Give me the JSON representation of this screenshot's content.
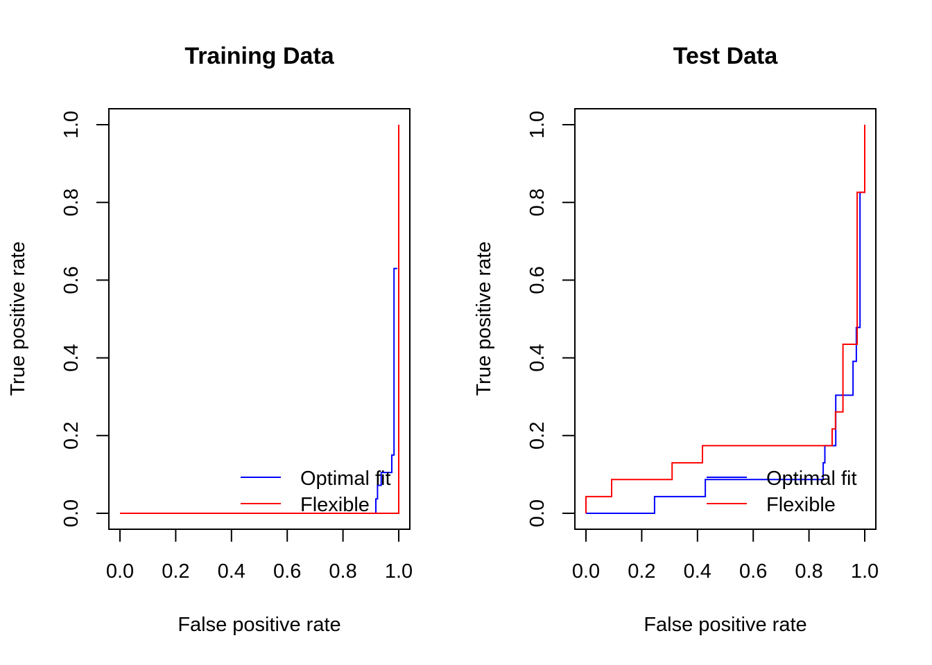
{
  "chart_data": [
    {
      "type": "line",
      "title": "Training Data",
      "xlabel": "False positive rate",
      "ylabel": "True positive rate",
      "xlim": [
        0,
        1
      ],
      "ylim": [
        0,
        1
      ],
      "xticks": [
        "0.0",
        "0.2",
        "0.4",
        "0.6",
        "0.8",
        "1.0"
      ],
      "yticks": [
        "0.0",
        "0.2",
        "0.4",
        "0.6",
        "0.8",
        "1.0"
      ],
      "xtick_values": [
        0,
        0.2,
        0.4,
        0.6,
        0.8,
        1.0
      ],
      "ytick_values": [
        0,
        0.2,
        0.4,
        0.6,
        0.8,
        1.0
      ],
      "grid": false,
      "legend_position": "bottom-right",
      "series": [
        {
          "name": "Optimal fit",
          "color": "#0000ff",
          "step": true,
          "x": [
            0,
            0.918,
            0.918,
            0.924,
            0.924,
            0.937,
            0.937,
            0.975,
            0.975,
            0.983,
            0.983,
            0.995
          ],
          "y": [
            0,
            0,
            0.037,
            0.037,
            0.072,
            0.072,
            0.105,
            0.105,
            0.15,
            0.15,
            0.63,
            0.63
          ]
        },
        {
          "name": "Flexible",
          "color": "#ff0000",
          "step": true,
          "x": [
            0,
            1.0,
            1.0
          ],
          "y": [
            0,
            0,
            1.0
          ]
        }
      ]
    },
    {
      "type": "line",
      "title": "Test Data",
      "xlabel": "False positive rate",
      "ylabel": "True positive rate",
      "xlim": [
        0,
        1
      ],
      "ylim": [
        0,
        1
      ],
      "xticks": [
        "0.0",
        "0.2",
        "0.4",
        "0.6",
        "0.8",
        "1.0"
      ],
      "yticks": [
        "0.0",
        "0.2",
        "0.4",
        "0.6",
        "0.8",
        "1.0"
      ],
      "xtick_values": [
        0,
        0.2,
        0.4,
        0.6,
        0.8,
        1.0
      ],
      "ytick_values": [
        0,
        0.2,
        0.4,
        0.6,
        0.8,
        1.0
      ],
      "grid": false,
      "legend_position": "bottom-right",
      "series": [
        {
          "name": "Optimal fit",
          "color": "#0000ff",
          "step": true,
          "x": [
            0,
            0.246,
            0.246,
            0.428,
            0.428,
            0.851,
            0.851,
            0.857,
            0.857,
            0.896,
            0.896,
            0.958,
            0.958,
            0.97,
            0.97,
            0.983,
            0.983,
            1.0,
            1.0
          ],
          "y": [
            0,
            0,
            0.043,
            0.043,
            0.087,
            0.087,
            0.13,
            0.13,
            0.174,
            0.174,
            0.304,
            0.304,
            0.391,
            0.391,
            0.478,
            0.478,
            0.826,
            0.826,
            1.0
          ]
        },
        {
          "name": "Flexible",
          "color": "#ff0000",
          "step": true,
          "x": [
            0,
            0,
            0.092,
            0.092,
            0.309,
            0.309,
            0.418,
            0.418,
            0.883,
            0.883,
            0.895,
            0.895,
            0.922,
            0.922,
            0.973,
            0.973,
            1.0,
            1.0
          ],
          "y": [
            0,
            0.043,
            0.043,
            0.087,
            0.087,
            0.13,
            0.13,
            0.174,
            0.174,
            0.217,
            0.217,
            0.261,
            0.261,
            0.435,
            0.435,
            0.826,
            0.826,
            1.0
          ]
        }
      ]
    }
  ]
}
